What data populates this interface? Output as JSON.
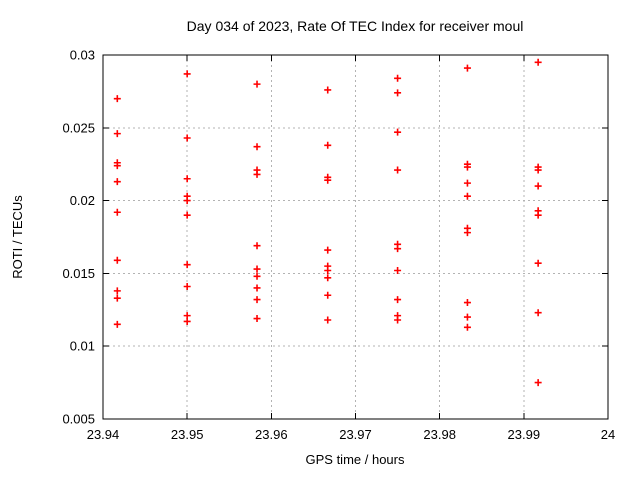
{
  "chart_data": {
    "type": "scatter",
    "title": "Day 034 of 2023, Rate Of TEC Index for receiver moul",
    "xlabel": "GPS time / hours",
    "ylabel": "ROTI / TECUs",
    "xlim": [
      23.94,
      24
    ],
    "ylim": [
      0.005,
      0.03
    ],
    "xticks": [
      23.94,
      23.95,
      23.96,
      23.97,
      23.98,
      23.99,
      24
    ],
    "xtick_labels": [
      "23.94",
      "23.95",
      "23.96",
      "23.97",
      "23.98",
      "23.99",
      "24"
    ],
    "yticks": [
      0.005,
      0.01,
      0.015,
      0.02,
      0.025,
      0.03
    ],
    "ytick_labels": [
      "0.005",
      "0.01",
      "0.015",
      "0.02",
      "0.025",
      "0.03"
    ],
    "grid": true,
    "legend_position": "none",
    "marker": {
      "shape": "plus",
      "color": "#ff0000",
      "size": 7
    },
    "series": [
      {
        "name": "ROTI",
        "points": [
          [
            23.9417,
            0.027
          ],
          [
            23.9417,
            0.0246
          ],
          [
            23.9417,
            0.0226
          ],
          [
            23.9417,
            0.0224
          ],
          [
            23.9417,
            0.0213
          ],
          [
            23.9417,
            0.0192
          ],
          [
            23.9417,
            0.0159
          ],
          [
            23.9417,
            0.0138
          ],
          [
            23.9417,
            0.0133
          ],
          [
            23.9417,
            0.0115
          ],
          [
            23.95,
            0.0287
          ],
          [
            23.95,
            0.0243
          ],
          [
            23.95,
            0.0215
          ],
          [
            23.95,
            0.0203
          ],
          [
            23.95,
            0.02
          ],
          [
            23.95,
            0.019
          ],
          [
            23.95,
            0.0156
          ],
          [
            23.95,
            0.0141
          ],
          [
            23.95,
            0.0121
          ],
          [
            23.95,
            0.0117
          ],
          [
            23.9583,
            0.028
          ],
          [
            23.9583,
            0.0237
          ],
          [
            23.9583,
            0.0221
          ],
          [
            23.9583,
            0.0218
          ],
          [
            23.9583,
            0.0169
          ],
          [
            23.9583,
            0.0153
          ],
          [
            23.9583,
            0.0148
          ],
          [
            23.9583,
            0.014
          ],
          [
            23.9583,
            0.0132
          ],
          [
            23.9583,
            0.0119
          ],
          [
            23.9667,
            0.0276
          ],
          [
            23.9667,
            0.0238
          ],
          [
            23.9667,
            0.0216
          ],
          [
            23.9667,
            0.0214
          ],
          [
            23.9667,
            0.0166
          ],
          [
            23.9667,
            0.0155
          ],
          [
            23.9667,
            0.0152
          ],
          [
            23.9667,
            0.0147
          ],
          [
            23.9667,
            0.0135
          ],
          [
            23.9667,
            0.0118
          ],
          [
            23.975,
            0.0284
          ],
          [
            23.975,
            0.0274
          ],
          [
            23.975,
            0.0247
          ],
          [
            23.975,
            0.0221
          ],
          [
            23.975,
            0.017
          ],
          [
            23.975,
            0.0167
          ],
          [
            23.975,
            0.0152
          ],
          [
            23.975,
            0.0132
          ],
          [
            23.975,
            0.0121
          ],
          [
            23.975,
            0.0118
          ],
          [
            23.9833,
            0.0291
          ],
          [
            23.9833,
            0.0225
          ],
          [
            23.9833,
            0.0223
          ],
          [
            23.9833,
            0.0212
          ],
          [
            23.9833,
            0.0203
          ],
          [
            23.9833,
            0.0181
          ],
          [
            23.9833,
            0.0178
          ],
          [
            23.9833,
            0.013
          ],
          [
            23.9833,
            0.012
          ],
          [
            23.9833,
            0.0113
          ],
          [
            23.9917,
            0.0295
          ],
          [
            23.9917,
            0.0223
          ],
          [
            23.9917,
            0.0221
          ],
          [
            23.9917,
            0.021
          ],
          [
            23.9917,
            0.0193
          ],
          [
            23.9917,
            0.019
          ],
          [
            23.9917,
            0.0157
          ],
          [
            23.9917,
            0.0123
          ],
          [
            23.9917,
            0.0075
          ]
        ]
      }
    ]
  }
}
